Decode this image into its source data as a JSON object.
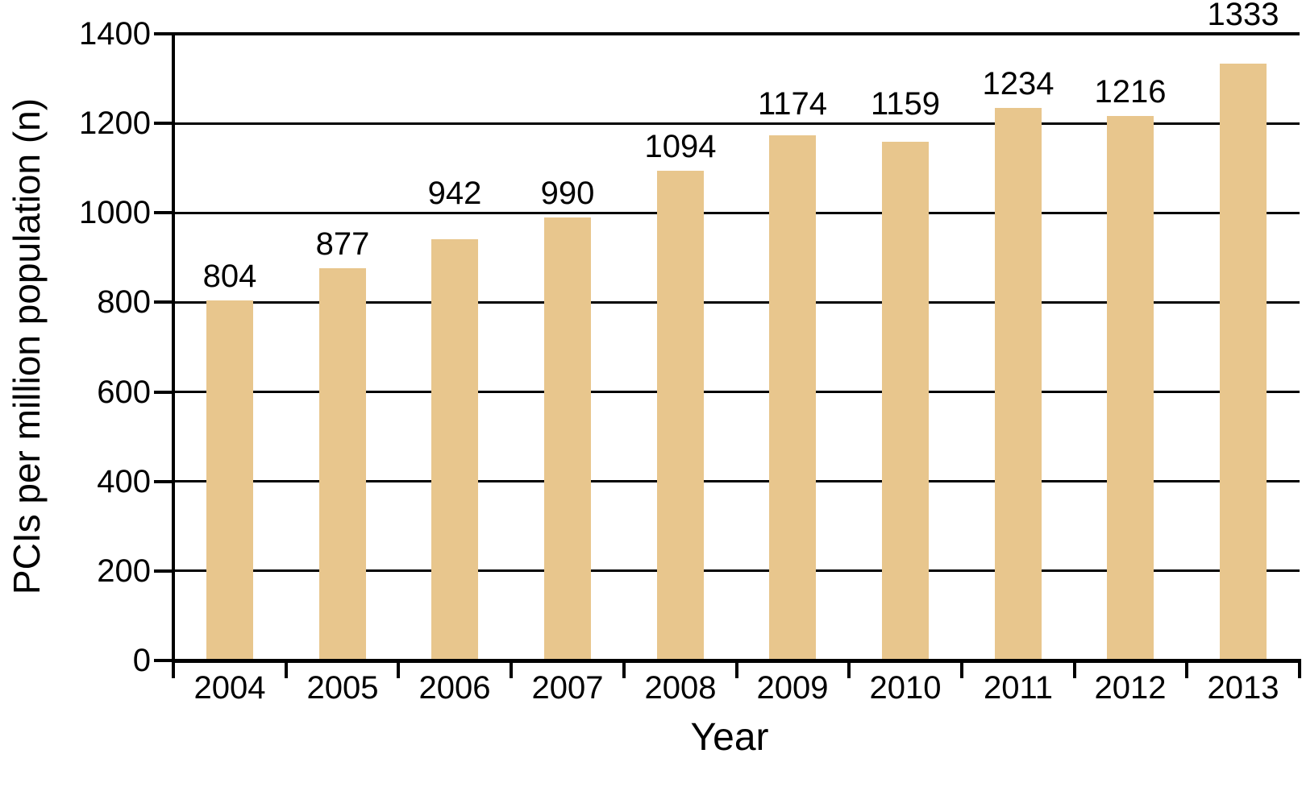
{
  "chart_data": {
    "type": "bar",
    "title": "",
    "categories": [
      "2004",
      "2005",
      "2006",
      "2007",
      "2008",
      "2009",
      "2010",
      "2011",
      "2012",
      "2013"
    ],
    "values": [
      804,
      877,
      942,
      990,
      1094,
      1174,
      1159,
      1234,
      1216,
      1333
    ],
    "value_labels_shown": true,
    "xlabel": "Year",
    "ylabel": "PCIs per million population (n)",
    "ylim": [
      0,
      1400
    ],
    "yticks": [
      0,
      200,
      400,
      600,
      800,
      1000,
      1200,
      1400
    ],
    "grid": "horizontal",
    "legend": "none",
    "bar_color": "#E8C68D",
    "axis_color": "#000000",
    "background_color": "#FFFFFF"
  }
}
